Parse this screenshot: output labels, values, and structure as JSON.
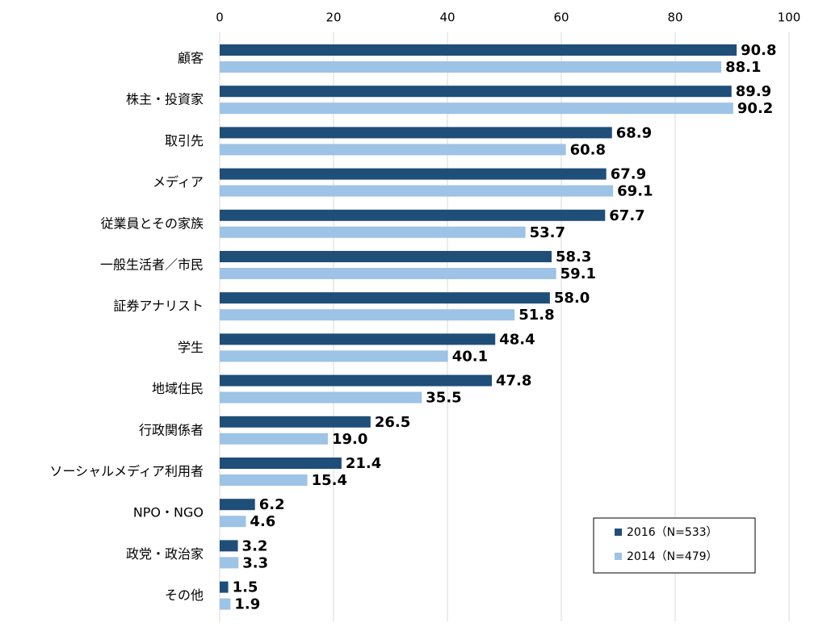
{
  "chart_data": {
    "type": "bar",
    "orientation": "horizontal",
    "categories": [
      "顧客",
      "株主・投資家",
      "取引先",
      "メディア",
      "従業員とその家族",
      "一般生活者／市民",
      "証券アナリスト",
      "学生",
      "地域住民",
      "行政関係者",
      "ソーシャルメディア利用者",
      "NPO・NGO",
      "政党・政治家",
      "その他"
    ],
    "series": [
      {
        "name": "2016（N=533）",
        "color": "#1f4e79",
        "label_color": "#333f50",
        "values": [
          90.8,
          89.9,
          68.9,
          67.9,
          67.7,
          58.3,
          58.0,
          48.4,
          47.8,
          26.5,
          21.4,
          6.2,
          3.2,
          1.5
        ]
      },
      {
        "name": "2014（N=479）",
        "color": "#9dc3e6",
        "label_color": "#9dc3e6",
        "values": [
          88.1,
          90.2,
          60.8,
          69.1,
          53.7,
          59.1,
          51.8,
          40.1,
          35.5,
          19.0,
          15.4,
          4.6,
          3.3,
          1.9
        ]
      }
    ],
    "value_labels": [
      [
        "90.8",
        "89.9",
        "68.9",
        "67.9",
        "67.7",
        "58.3",
        "58.0",
        "48.4",
        "47.8",
        "26.5",
        "21.4",
        "6.2",
        "3.2",
        "1.5"
      ],
      [
        "88.1",
        "90.2",
        "60.8",
        "69.1",
        "53.7",
        "59.1",
        "51.8",
        "40.1",
        "35.5",
        "19.0",
        "15.4",
        "4.6",
        "3.3",
        "1.9"
      ]
    ],
    "xlim": [
      0,
      100
    ],
    "xticks": [
      0,
      20,
      40,
      60,
      80,
      100
    ],
    "grid": true,
    "legend": "lower right"
  }
}
